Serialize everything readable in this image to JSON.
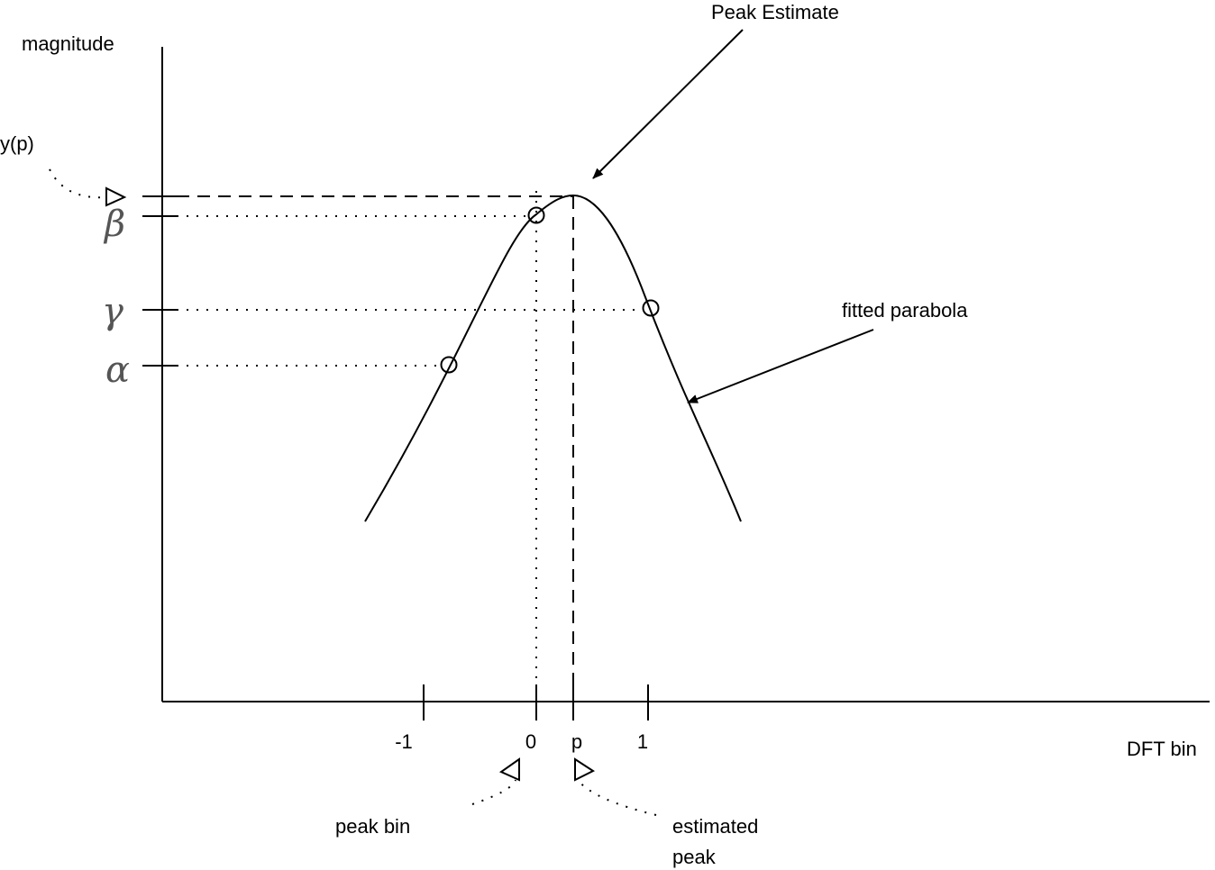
{
  "axes": {
    "y_label": "magnitude",
    "x_label": "DFT bin"
  },
  "x_ticks": [
    "-1",
    "0",
    "p",
    "1"
  ],
  "y_markers": {
    "yp": "y(p)",
    "beta": "β",
    "gamma": "γ",
    "alpha": "α"
  },
  "annotations": {
    "peak_estimate": "Peak Estimate",
    "fitted_parabola": "fitted parabola",
    "peak_bin": "peak bin",
    "estimated_peak_line1": "estimated",
    "estimated_peak_line2": "peak"
  },
  "colors": {
    "line": "#000000",
    "greek": "#555555",
    "background": "#ffffff"
  }
}
